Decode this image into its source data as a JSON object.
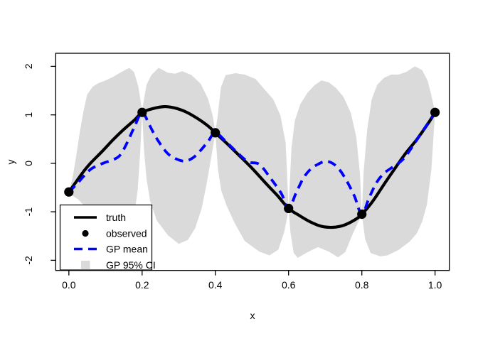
{
  "figure": {
    "background": "#ffffff",
    "axis_color": "#000000"
  },
  "chart_data": {
    "type": "line",
    "title": "",
    "xlabel": "x",
    "ylabel": "y",
    "xlim": [
      -0.036,
      1.039
    ],
    "ylim": [
      -2.21,
      2.27
    ],
    "grid": false,
    "x_ticks": [
      "0.0",
      "0.2",
      "0.4",
      "0.6",
      "0.8",
      "1.0"
    ],
    "x_tick_values": [
      0.0,
      0.2,
      0.4,
      0.6,
      0.8,
      1.0
    ],
    "y_ticks": [
      "-2",
      "-1",
      "0",
      "1",
      "2"
    ],
    "y_tick_values": [
      -2,
      -1,
      0,
      1,
      2
    ],
    "colors": {
      "truth": "#000000",
      "observed": "#000000",
      "gp_mean": "#0000FF",
      "ci_band": "#DADADA",
      "background": "#ffffff",
      "axis": "#000000"
    },
    "legend": {
      "position": "bottomleft",
      "entries": [
        {
          "label": "truth",
          "swatch": "line",
          "color": "#000000",
          "style": "solid"
        },
        {
          "label": "observed",
          "swatch": "point",
          "color": "#000000",
          "style": "filled"
        },
        {
          "label": "GP mean",
          "swatch": "line",
          "color": "#0000FF",
          "style": "dashed"
        },
        {
          "label": "GP 95% CI",
          "swatch": "fill",
          "color": "#DADADA",
          "style": "filled"
        }
      ]
    },
    "series": [
      {
        "name": "truth",
        "type": "line",
        "color": "#000000",
        "style": "solid",
        "points": [
          [
            0,
            -0.59
          ],
          [
            0.02,
            -0.38
          ],
          [
            0.04,
            -0.17
          ],
          [
            0.06,
            0.01
          ],
          [
            0.09,
            0.24
          ],
          [
            0.12,
            0.48
          ],
          [
            0.15,
            0.7
          ],
          [
            0.18,
            0.9
          ],
          [
            0.2,
            1.05
          ],
          [
            0.23,
            1.13
          ],
          [
            0.26,
            1.17
          ],
          [
            0.29,
            1.14
          ],
          [
            0.32,
            1.06
          ],
          [
            0.35,
            0.93
          ],
          [
            0.38,
            0.77
          ],
          [
            0.4,
            0.63
          ],
          [
            0.43,
            0.42
          ],
          [
            0.46,
            0.2
          ],
          [
            0.5,
            -0.1
          ],
          [
            0.54,
            -0.43
          ],
          [
            0.57,
            -0.67
          ],
          [
            0.6,
            -0.93
          ],
          [
            0.63,
            -1.08
          ],
          [
            0.66,
            -1.21
          ],
          [
            0.69,
            -1.3
          ],
          [
            0.72,
            -1.32
          ],
          [
            0.75,
            -1.28
          ],
          [
            0.78,
            -1.17
          ],
          [
            0.8,
            -1.05
          ],
          [
            0.83,
            -0.78
          ],
          [
            0.86,
            -0.44
          ],
          [
            0.89,
            -0.11
          ],
          [
            0.92,
            0.21
          ],
          [
            0.95,
            0.49
          ],
          [
            0.98,
            0.81
          ],
          [
            1,
            1.05
          ]
        ]
      },
      {
        "name": "observed",
        "type": "scatter",
        "color": "#000000",
        "points": [
          [
            0,
            -0.59
          ],
          [
            0.2,
            1.05
          ],
          [
            0.4,
            0.63
          ],
          [
            0.6,
            -0.93
          ],
          [
            0.8,
            -1.05
          ],
          [
            1.0,
            1.05
          ]
        ]
      },
      {
        "name": "GP mean",
        "type": "line",
        "color": "#0000FF",
        "style": "dashed",
        "points": [
          [
            0,
            -0.59
          ],
          [
            0.02,
            -0.44
          ],
          [
            0.04,
            -0.27
          ],
          [
            0.06,
            -0.12
          ],
          [
            0.08,
            -0.04
          ],
          [
            0.1,
            0.02
          ],
          [
            0.12,
            0.07
          ],
          [
            0.14,
            0.17
          ],
          [
            0.16,
            0.44
          ],
          [
            0.18,
            0.77
          ],
          [
            0.2,
            1.05
          ],
          [
            0.22,
            0.79
          ],
          [
            0.24,
            0.51
          ],
          [
            0.27,
            0.2
          ],
          [
            0.3,
            0.07
          ],
          [
            0.32,
            0.05
          ],
          [
            0.34,
            0.12
          ],
          [
            0.36,
            0.27
          ],
          [
            0.38,
            0.45
          ],
          [
            0.4,
            0.63
          ],
          [
            0.43,
            0.44
          ],
          [
            0.46,
            0.22
          ],
          [
            0.49,
            0.03
          ],
          [
            0.52,
            -0.02
          ],
          [
            0.55,
            -0.3
          ],
          [
            0.58,
            -0.62
          ],
          [
            0.6,
            -0.93
          ],
          [
            0.62,
            -0.62
          ],
          [
            0.64,
            -0.31
          ],
          [
            0.66,
            -0.12
          ],
          [
            0.68,
            -0.02
          ],
          [
            0.7,
            0.04
          ],
          [
            0.72,
            0.0
          ],
          [
            0.74,
            -0.14
          ],
          [
            0.76,
            -0.38
          ],
          [
            0.78,
            -0.68
          ],
          [
            0.8,
            -1.05
          ],
          [
            0.82,
            -0.71
          ],
          [
            0.84,
            -0.4
          ],
          [
            0.86,
            -0.21
          ],
          [
            0.88,
            -0.1
          ],
          [
            0.9,
            0.0
          ],
          [
            0.92,
            0.15
          ],
          [
            0.95,
            0.48
          ],
          [
            0.98,
            0.82
          ],
          [
            1,
            1.05
          ]
        ]
      },
      {
        "name": "GP 95% CI",
        "type": "band",
        "color": "#DADADA",
        "upper": [
          [
            0,
            -0.59
          ],
          [
            0.01,
            -0.3
          ],
          [
            0.02,
            0.15
          ],
          [
            0.03,
            0.65
          ],
          [
            0.04,
            1.08
          ],
          [
            0.05,
            1.42
          ],
          [
            0.065,
            1.58
          ],
          [
            0.08,
            1.65
          ],
          [
            0.1,
            1.71
          ],
          [
            0.12,
            1.78
          ],
          [
            0.145,
            1.89
          ],
          [
            0.165,
            1.97
          ],
          [
            0.178,
            1.88
          ],
          [
            0.19,
            1.58
          ],
          [
            0.195,
            1.32
          ],
          [
            0.2,
            1.05
          ],
          [
            0.205,
            1.32
          ],
          [
            0.212,
            1.62
          ],
          [
            0.225,
            1.82
          ],
          [
            0.245,
            1.97
          ],
          [
            0.27,
            1.87
          ],
          [
            0.29,
            1.85
          ],
          [
            0.31,
            1.9
          ],
          [
            0.335,
            1.82
          ],
          [
            0.36,
            1.64
          ],
          [
            0.38,
            1.33
          ],
          [
            0.393,
            0.98
          ],
          [
            0.4,
            0.63
          ],
          [
            0.407,
            1.02
          ],
          [
            0.415,
            1.56
          ],
          [
            0.428,
            1.82
          ],
          [
            0.455,
            1.86
          ],
          [
            0.48,
            1.83
          ],
          [
            0.51,
            1.74
          ],
          [
            0.535,
            1.52
          ],
          [
            0.558,
            1.32
          ],
          [
            0.578,
            0.98
          ],
          [
            0.592,
            0.42
          ],
          [
            0.6,
            -0.93
          ],
          [
            0.608,
            0.32
          ],
          [
            0.617,
            0.88
          ],
          [
            0.632,
            1.22
          ],
          [
            0.652,
            1.46
          ],
          [
            0.672,
            1.62
          ],
          [
            0.69,
            1.71
          ],
          [
            0.71,
            1.67
          ],
          [
            0.73,
            1.55
          ],
          [
            0.75,
            1.37
          ],
          [
            0.77,
            1.04
          ],
          [
            0.785,
            0.54
          ],
          [
            0.795,
            -0.22
          ],
          [
            0.8,
            -1.05
          ],
          [
            0.805,
            -0.18
          ],
          [
            0.815,
            0.72
          ],
          [
            0.827,
            1.32
          ],
          [
            0.842,
            1.62
          ],
          [
            0.86,
            1.76
          ],
          [
            0.88,
            1.83
          ],
          [
            0.9,
            1.83
          ],
          [
            0.92,
            1.88
          ],
          [
            0.945,
            2.0
          ],
          [
            0.965,
            1.92
          ],
          [
            0.98,
            1.7
          ],
          [
            0.99,
            1.4
          ],
          [
            1,
            1.05
          ]
        ],
        "lower": [
          [
            0,
            -0.59
          ],
          [
            0.01,
            -0.67
          ],
          [
            0.025,
            -0.74
          ],
          [
            0.04,
            -0.86
          ],
          [
            0.06,
            -1.16
          ],
          [
            0.08,
            -1.5
          ],
          [
            0.1,
            -1.72
          ],
          [
            0.13,
            -1.85
          ],
          [
            0.155,
            -1.73
          ],
          [
            0.175,
            -1.25
          ],
          [
            0.188,
            -0.55
          ],
          [
            0.195,
            0.25
          ],
          [
            0.2,
            1.05
          ],
          [
            0.205,
            0.28
          ],
          [
            0.212,
            -0.32
          ],
          [
            0.222,
            -0.78
          ],
          [
            0.24,
            -1.18
          ],
          [
            0.27,
            -1.48
          ],
          [
            0.3,
            -1.66
          ],
          [
            0.325,
            -1.58
          ],
          [
            0.345,
            -1.34
          ],
          [
            0.363,
            -0.92
          ],
          [
            0.378,
            -0.35
          ],
          [
            0.39,
            0.18
          ],
          [
            0.4,
            0.63
          ],
          [
            0.407,
            -0.12
          ],
          [
            0.416,
            -0.56
          ],
          [
            0.43,
            -0.86
          ],
          [
            0.452,
            -1.22
          ],
          [
            0.48,
            -1.6
          ],
          [
            0.52,
            -1.82
          ],
          [
            0.548,
            -1.9
          ],
          [
            0.572,
            -1.78
          ],
          [
            0.588,
            -1.42
          ],
          [
            0.596,
            -1.12
          ],
          [
            0.6,
            -0.93
          ],
          [
            0.605,
            -1.42
          ],
          [
            0.614,
            -1.85
          ],
          [
            0.625,
            -1.95
          ],
          [
            0.65,
            -1.84
          ],
          [
            0.68,
            -1.73
          ],
          [
            0.71,
            -1.82
          ],
          [
            0.735,
            -1.94
          ],
          [
            0.755,
            -1.83
          ],
          [
            0.775,
            -1.46
          ],
          [
            0.79,
            -1.22
          ],
          [
            0.8,
            -1.05
          ],
          [
            0.809,
            -1.56
          ],
          [
            0.824,
            -1.85
          ],
          [
            0.85,
            -1.92
          ],
          [
            0.87,
            -1.9
          ],
          [
            0.9,
            -1.79
          ],
          [
            0.93,
            -1.62
          ],
          [
            0.95,
            -1.45
          ],
          [
            0.965,
            -1.2
          ],
          [
            0.978,
            -0.84
          ],
          [
            0.99,
            -0.12
          ],
          [
            1,
            1.05
          ]
        ]
      }
    ]
  }
}
